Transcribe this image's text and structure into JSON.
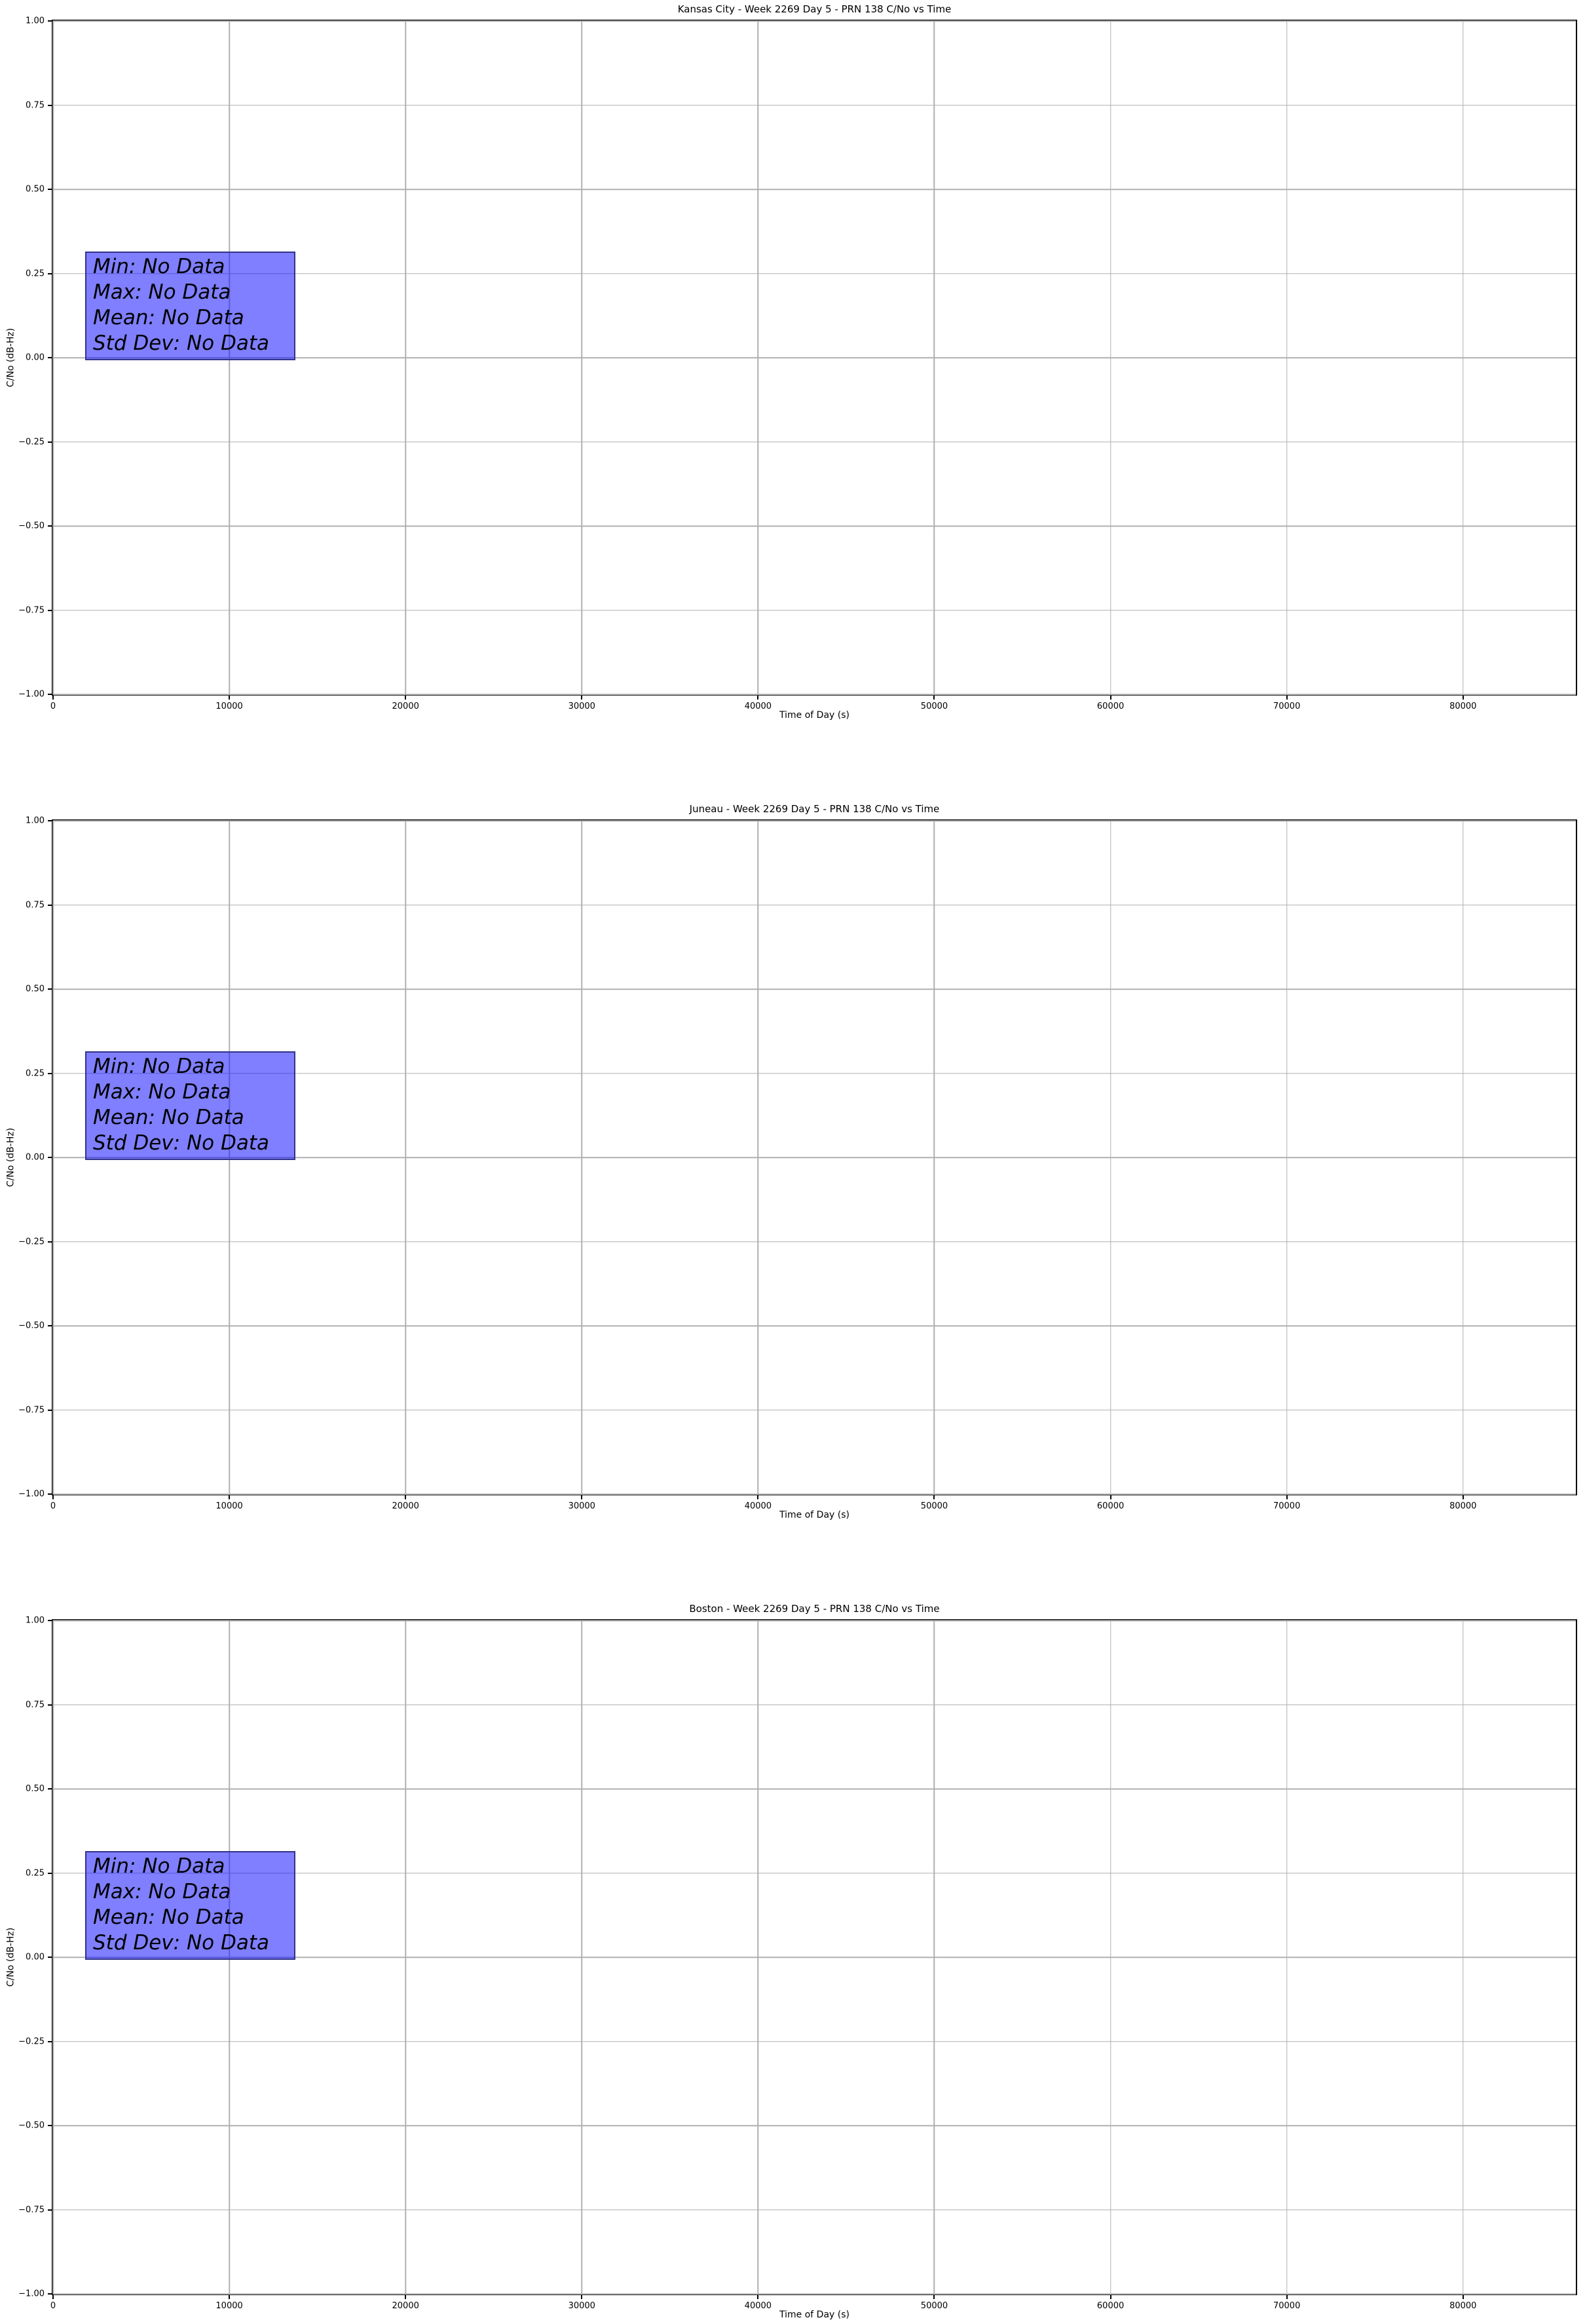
{
  "page": {
    "background_color": "#ffffff",
    "grid_color": "#b0b0b0",
    "axis_color": "#000000",
    "text_color": "#000000"
  },
  "chart_data": [
    {
      "type": "line",
      "station": "Kansas City",
      "title": "Kansas City - Week 2269 Day 5 - PRN 138 C/No vs Time",
      "xlabel": "Time of Day (s)",
      "ylabel": "C/No (dB-Hz)",
      "xlim": [
        0,
        86400
      ],
      "ylim": [
        -1.0,
        1.0
      ],
      "xticks": [
        0,
        10000,
        20000,
        30000,
        40000,
        50000,
        60000,
        70000,
        80000
      ],
      "xtick_labels": [
        "0",
        "10000",
        "20000",
        "30000",
        "40000",
        "50000",
        "60000",
        "70000",
        "80000"
      ],
      "yticks": [
        1.0,
        0.75,
        0.5,
        0.25,
        0.0,
        -0.25,
        -0.5,
        -0.75,
        -1.0
      ],
      "ytick_labels": [
        "1.00",
        "0.75",
        "0.50",
        "0.25",
        "0.00",
        "−0.25",
        "−0.50",
        "−0.75",
        "−1.00"
      ],
      "grid": true,
      "legend": "none",
      "series": [],
      "annotation": {
        "lines": [
          "Min: No Data",
          "Max: No Data",
          "Mean: No Data",
          "Std Dev: No Data"
        ],
        "fill_color": "#0000ff",
        "fill_alpha": 0.5,
        "border_color": "#32328c",
        "text_color": "#000000"
      }
    },
    {
      "type": "line",
      "station": "Juneau",
      "title": "Juneau - Week 2269 Day 5 - PRN 138 C/No vs Time",
      "xlabel": "Time of Day (s)",
      "ylabel": "C/No (dB-Hz)",
      "xlim": [
        0,
        86400
      ],
      "ylim": [
        -1.0,
        1.0
      ],
      "xticks": [
        0,
        10000,
        20000,
        30000,
        40000,
        50000,
        60000,
        70000,
        80000
      ],
      "xtick_labels": [
        "0",
        "10000",
        "20000",
        "30000",
        "40000",
        "50000",
        "60000",
        "70000",
        "80000"
      ],
      "yticks": [
        1.0,
        0.75,
        0.5,
        0.25,
        0.0,
        -0.25,
        -0.5,
        -0.75,
        -1.0
      ],
      "ytick_labels": [
        "1.00",
        "0.75",
        "0.50",
        "0.25",
        "0.00",
        "−0.25",
        "−0.50",
        "−0.75",
        "−1.00"
      ],
      "grid": true,
      "legend": "none",
      "series": [],
      "annotation": {
        "lines": [
          "Min: No Data",
          "Max: No Data",
          "Mean: No Data",
          "Std Dev: No Data"
        ],
        "fill_color": "#0000ff",
        "fill_alpha": 0.5,
        "border_color": "#32328c",
        "text_color": "#000000"
      }
    },
    {
      "type": "line",
      "station": "Boston",
      "title": "Boston - Week 2269 Day 5 - PRN 138 C/No vs Time",
      "xlabel": "Time of Day (s)",
      "ylabel": "C/No (dB-Hz)",
      "xlim": [
        0,
        86400
      ],
      "ylim": [
        -1.0,
        1.0
      ],
      "xticks": [
        0,
        10000,
        20000,
        30000,
        40000,
        50000,
        60000,
        70000,
        80000
      ],
      "xtick_labels": [
        "0",
        "10000",
        "20000",
        "30000",
        "40000",
        "50000",
        "60000",
        "70000",
        "80000"
      ],
      "yticks": [
        1.0,
        0.75,
        0.5,
        0.25,
        0.0,
        -0.25,
        -0.5,
        -0.75,
        -1.0
      ],
      "ytick_labels": [
        "1.00",
        "0.75",
        "0.50",
        "0.25",
        "0.00",
        "−0.25",
        "−0.50",
        "−0.75",
        "−1.00"
      ],
      "grid": true,
      "legend": "none",
      "series": [],
      "annotation": {
        "lines": [
          "Min: No Data",
          "Max: No Data",
          "Mean: No Data",
          "Std Dev: No Data"
        ],
        "fill_color": "#0000ff",
        "fill_alpha": 0.5,
        "border_color": "#32328c",
        "text_color": "#000000"
      }
    }
  ]
}
